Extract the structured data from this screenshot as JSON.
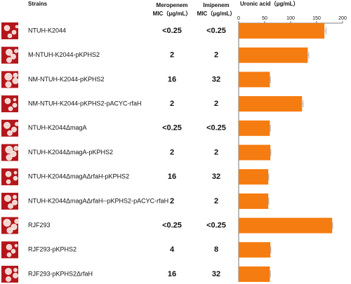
{
  "header": {
    "strains": "Strains",
    "meropenem": [
      "Meropenem",
      "MIC（μg/mL）"
    ],
    "imipenem": [
      "Imipenem",
      "MIC（μg/mL）"
    ]
  },
  "table": {
    "rows": [
      [
        "<0.25",
        "<0.25"
      ],
      [
        "2",
        "2"
      ],
      [
        "16",
        "32"
      ],
      [
        "2",
        "2"
      ],
      [
        "<0.25",
        "<0.25"
      ],
      [
        "2",
        "2"
      ],
      [
        "16",
        "32"
      ],
      [
        "2",
        "2"
      ],
      [
        "<0.25",
        "<0.25"
      ],
      [
        "4",
        "8"
      ],
      [
        "16",
        "32"
      ]
    ]
  },
  "chart_data": {
    "type": "bar",
    "orientation": "horizontal",
    "title": "Uronic acid（μg/mL）",
    "categories": [
      "NTUH-K2044",
      "M-NTUH-K2044-pKPHS2",
      "NM-NTUH-K2044-pKPHS2",
      "NM-NTUH-K2044-pKPHS2-pACYC-rfaH",
      "NTUH-K2044ΔmagA",
      "NTUH-K2044ΔmagA-pKPHS2",
      "NTUH-K2044ΔmagAΔrfaH-pKPHS2",
      "NTUH-K2044ΔmagAΔrfaH--pKPHS2-pACYC-rfaH",
      "RJF293",
      "RJF293-pKPHS2",
      "RJF293-pKPHS2ΔrfaH"
    ],
    "values": [
      165,
      133,
      60,
      122,
      60,
      61,
      57,
      57,
      180,
      61,
      60
    ],
    "errors": [
      3,
      2,
      1,
      2,
      1,
      1,
      1,
      1,
      1,
      1,
      1
    ],
    "color": "#f57c10",
    "xlim": [
      0,
      200
    ],
    "xticks": [
      0,
      50,
      100,
      150,
      200
    ]
  }
}
